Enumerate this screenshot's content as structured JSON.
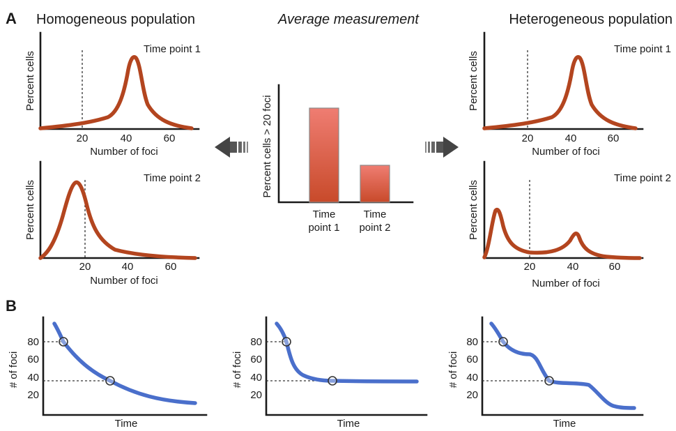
{
  "panel_a": {
    "label": "A",
    "left_title": "Homogeneous population",
    "center_title": "Average measurement",
    "right_title": "Heterogeneous population",
    "dist_plots": [
      {
        "id": "hom-tp1",
        "title": "Time point 1",
        "ylabel": "Percent cells",
        "xlabel": "Number of foci",
        "xticks": [
          "20",
          "40",
          "60"
        ]
      },
      {
        "id": "hom-tp2",
        "title": "Time point 2",
        "ylabel": "Percent cells",
        "xlabel": "Number of foci",
        "xticks": [
          "20",
          "40",
          "60"
        ]
      },
      {
        "id": "het-tp1",
        "title": "Time point 1",
        "ylabel": "Percent cells",
        "xlabel": "Number of foci",
        "xticks": [
          "20",
          "40",
          "60"
        ]
      },
      {
        "id": "het-tp2",
        "title": "Time point 2",
        "ylabel": "Percent cells",
        "xlabel": "Number of foci",
        "xticks": [
          "20",
          "40",
          "60"
        ]
      }
    ],
    "bar_chart": {
      "ylabel": "Percent cells > 20 foci",
      "bars": [
        {
          "label_line1": "Time",
          "label_line2": "point 1"
        },
        {
          "label_line1": "Time",
          "label_line2": "point 2"
        }
      ]
    }
  },
  "panel_b": {
    "label": "B",
    "plots": [
      {
        "id": "b1",
        "ylabel": "# of foci",
        "xlabel": "Time",
        "yticks": [
          "80",
          "60",
          "40",
          "20"
        ]
      },
      {
        "id": "b2",
        "ylabel": "# of foci",
        "xlabel": "Time",
        "yticks": [
          "80",
          "60",
          "40",
          "20"
        ]
      },
      {
        "id": "b3",
        "ylabel": "# of foci",
        "xlabel": "Time",
        "yticks": [
          "80",
          "60",
          "40",
          "20"
        ]
      }
    ]
  },
  "colors": {
    "distribution_curve": "#b3451f",
    "time_curve": "#4a6fcb",
    "bar_top": "#ef7d72",
    "bar_bottom": "#c84a2a",
    "arrow_dark": "#444444"
  }
}
